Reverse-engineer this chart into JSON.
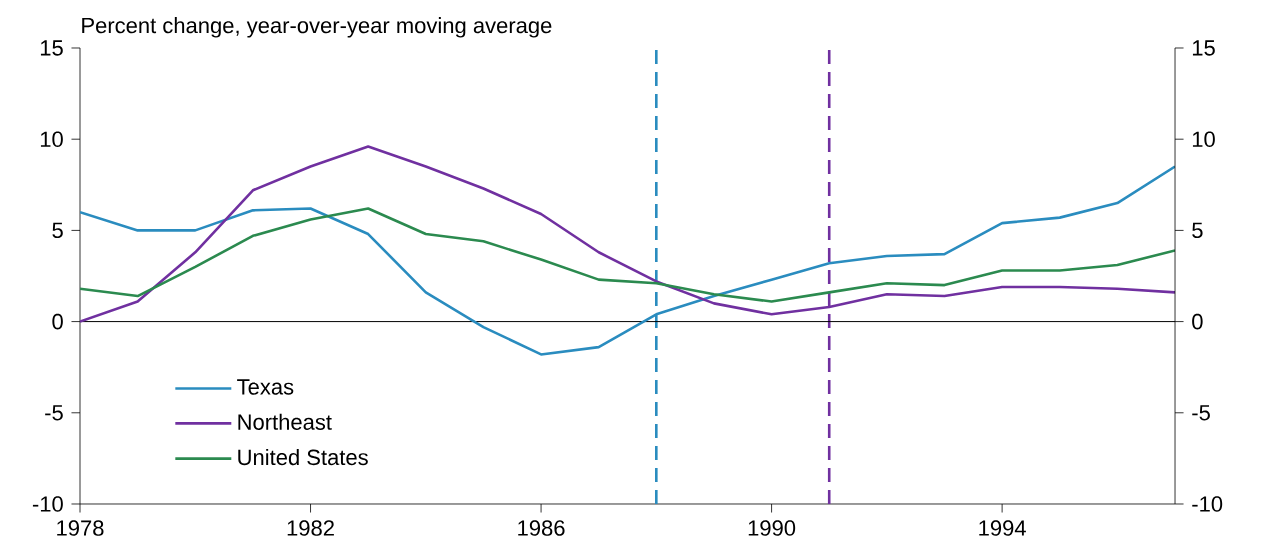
{
  "chart_data": {
    "type": "line",
    "title": "Percent change, year-over-year moving average",
    "x": [
      1978,
      1979,
      1980,
      1981,
      1982,
      1983,
      1984,
      1985,
      1986,
      1987,
      1988,
      1989,
      1990,
      1991,
      1992,
      1993,
      1994,
      1995,
      1996,
      1997
    ],
    "series": [
      {
        "name": "Texas",
        "color": "#2a8cbf",
        "values": [
          6.0,
          5.0,
          5.0,
          6.1,
          6.2,
          4.8,
          1.6,
          -0.3,
          -1.8,
          -1.4,
          0.4,
          1.4,
          2.3,
          3.2,
          3.6,
          3.7,
          5.4,
          5.7,
          6.5,
          8.5
        ]
      },
      {
        "name": "Northeast",
        "color": "#7030a0",
        "values": [
          0.0,
          1.1,
          3.8,
          7.2,
          8.5,
          9.6,
          8.5,
          7.3,
          5.9,
          3.8,
          2.2,
          1.0,
          0.4,
          0.8,
          1.5,
          1.4,
          1.9,
          1.9,
          1.8,
          1.6
        ]
      },
      {
        "name": "United States",
        "color": "#2b8a4f",
        "values": [
          1.8,
          1.4,
          3.0,
          4.7,
          5.6,
          6.2,
          4.8,
          4.4,
          3.4,
          2.3,
          2.1,
          1.5,
          1.1,
          1.6,
          2.1,
          2.0,
          2.8,
          2.8,
          3.1,
          3.9
        ]
      }
    ],
    "xlim": [
      1978,
      1997
    ],
    "xticks": [
      1978,
      1982,
      1986,
      1990,
      1994
    ],
    "ylim": [
      -10,
      15
    ],
    "yticks": [
      -10,
      -5,
      0,
      5,
      10,
      15
    ],
    "y2lim": [
      -10,
      15
    ],
    "y2ticks": [
      -10,
      -5,
      0,
      5,
      10,
      15
    ],
    "ref_lines": [
      {
        "axis": "x",
        "value": 1988,
        "color": "#2a8cbf",
        "line_style": "dashed"
      },
      {
        "axis": "x",
        "value": 1991,
        "color": "#7030a0",
        "line_style": "dashed"
      },
      {
        "axis": "y",
        "value": 0,
        "color": "#000000",
        "line_style": "solid"
      }
    ],
    "legend": "bottom left",
    "grid": false
  }
}
